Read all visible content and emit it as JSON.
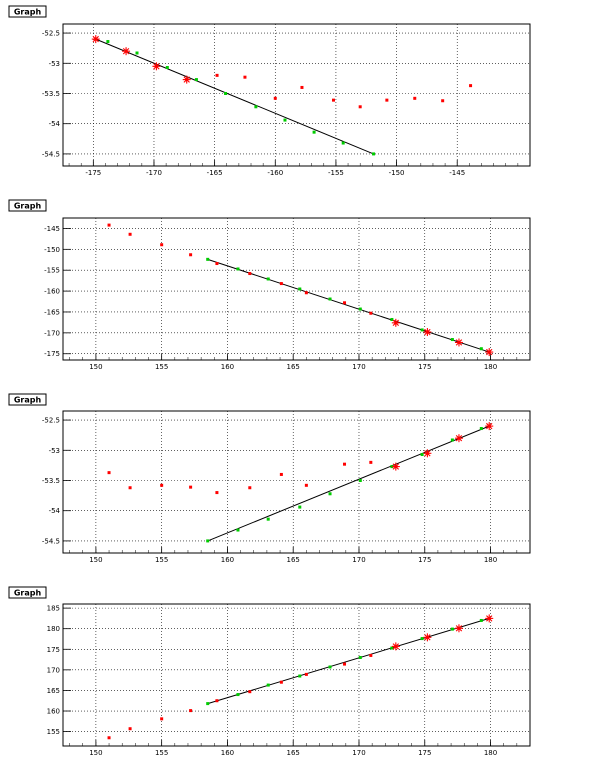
{
  "colors": {
    "red": "#ff0000",
    "green": "#00cc00",
    "black": "#000000"
  },
  "chart_data": [
    {
      "type": "scatter",
      "title": "Graph",
      "xlim": [
        -177.5,
        -139
      ],
      "ylim": [
        -54.7,
        -52.35
      ],
      "xticks": [
        -175,
        -170,
        -165,
        -160,
        -155,
        -150,
        -145
      ],
      "yticks": [
        -52.5,
        -53,
        -53.5,
        -54,
        -54.5
      ],
      "grid": true,
      "red_points": {
        "x": [
          -174.8,
          -172.3,
          -169.8,
          -167.3,
          -164.8,
          -162.5,
          -160,
          -157.8,
          -155.2,
          -153,
          -150.8,
          -148.5,
          -146.2,
          -143.9
        ],
        "y": [
          -52.6,
          -52.8,
          -53.05,
          -53.27,
          -53.2,
          -53.23,
          -53.58,
          -53.4,
          -53.61,
          -53.72,
          -53.61,
          -53.58,
          -53.62,
          -53.37
        ]
      },
      "star_points": {
        "x": [
          -174.8,
          -172.3,
          -169.8,
          -167.3
        ],
        "y": [
          -52.6,
          -52.8,
          -53.05,
          -53.27
        ]
      },
      "green_points": {
        "x": [
          -173.8,
          -171.4,
          -168.9,
          -166.5,
          -164.1,
          -161.6,
          -159.2,
          -156.8,
          -154.4,
          -151.9
        ],
        "y": [
          -52.64,
          -52.83,
          -53.07,
          -53.27,
          -53.5,
          -53.72,
          -53.94,
          -54.14,
          -54.32,
          -54.5
        ]
      },
      "fit_line": {
        "x": [
          -174.8,
          -151.9
        ],
        "y": [
          -52.6,
          -54.5
        ]
      }
    },
    {
      "type": "scatter",
      "title": "Graph",
      "xlim": [
        147.5,
        183
      ],
      "ylim": [
        -176.5,
        -142.5
      ],
      "xticks": [
        150,
        155,
        160,
        165,
        170,
        175,
        180
      ],
      "yticks": [
        -145,
        -150,
        -155,
        -160,
        -165,
        -170,
        -175
      ],
      "grid": true,
      "red_points": {
        "x": [
          151,
          152.6,
          155,
          157.2,
          159.2,
          161.7,
          164.1,
          166,
          168.9,
          170.9,
          172.8,
          175.2,
          177.6,
          179.9
        ],
        "y": [
          -144.2,
          -146.4,
          -148.9,
          -151.3,
          -153.4,
          -155.8,
          -158.2,
          -160.4,
          -162.8,
          -165.3,
          -167.6,
          -169.8,
          -172.3,
          -174.6
        ]
      },
      "star_points": {
        "x": [
          172.8,
          175.2,
          177.6,
          179.9
        ],
        "y": [
          -167.6,
          -169.8,
          -172.3,
          -174.6
        ]
      },
      "green_points": {
        "x": [
          158.5,
          160.8,
          163.1,
          165.5,
          167.8,
          170.1,
          172.5,
          174.8,
          177.1,
          179.3
        ],
        "y": [
          -152.4,
          -154.7,
          -157.1,
          -159.5,
          -161.9,
          -164.3,
          -166.8,
          -169.3,
          -171.6,
          -173.8
        ]
      },
      "fit_line": {
        "x": [
          158.5,
          179.9
        ],
        "y": [
          -152.4,
          -174.6
        ]
      }
    },
    {
      "type": "scatter",
      "title": "Graph",
      "xlim": [
        147.5,
        183
      ],
      "ylim": [
        -54.7,
        -52.35
      ],
      "xticks": [
        150,
        155,
        160,
        165,
        170,
        175,
        180
      ],
      "yticks": [
        -52.5,
        -53,
        -53.5,
        -54,
        -54.5
      ],
      "grid": true,
      "red_points": {
        "x": [
          151,
          152.6,
          155,
          157.2,
          159.2,
          161.7,
          164.1,
          166,
          168.9,
          170.9,
          172.8,
          175.2,
          177.6,
          179.9
        ],
        "y": [
          -53.37,
          -53.62,
          -53.58,
          -53.61,
          -53.7,
          -53.62,
          -53.4,
          -53.58,
          -53.23,
          -53.2,
          -53.27,
          -53.05,
          -52.8,
          -52.6
        ]
      },
      "star_points": {
        "x": [
          172.8,
          175.2,
          177.6,
          179.9
        ],
        "y": [
          -53.27,
          -53.05,
          -52.8,
          -52.6
        ]
      },
      "green_points": {
        "x": [
          158.5,
          160.8,
          163.1,
          165.5,
          167.8,
          170.1,
          172.5,
          174.8,
          177.1,
          179.3
        ],
        "y": [
          -54.5,
          -54.32,
          -54.14,
          -53.94,
          -53.72,
          -53.5,
          -53.27,
          -53.07,
          -52.83,
          -52.64
        ]
      },
      "fit_line": {
        "x": [
          158.5,
          179.9
        ],
        "y": [
          -54.5,
          -52.6
        ]
      }
    },
    {
      "type": "scatter",
      "title": "Graph",
      "xlim": [
        147.5,
        183
      ],
      "ylim": [
        151.5,
        186
      ],
      "xticks": [
        150,
        155,
        160,
        165,
        170,
        175,
        180
      ],
      "yticks": [
        155,
        160,
        165,
        170,
        175,
        180,
        185
      ],
      "grid": true,
      "red_points": {
        "x": [
          151,
          152.6,
          155,
          157.2,
          159.2,
          161.7,
          164.1,
          166,
          168.9,
          170.9,
          172.8,
          175.2,
          177.6,
          179.9
        ],
        "y": [
          153.5,
          155.7,
          158.1,
          160.1,
          162.5,
          164.7,
          167,
          168.9,
          171.4,
          173.5,
          175.7,
          177.9,
          180.1,
          182.5
        ]
      },
      "star_points": {
        "x": [
          172.8,
          175.2,
          177.6,
          179.9
        ],
        "y": [
          175.7,
          177.9,
          180.1,
          182.5
        ]
      },
      "green_points": {
        "x": [
          158.5,
          160.8,
          163.1,
          165.5,
          167.8,
          170.1,
          172.5,
          174.8,
          177.1,
          179.3
        ],
        "y": [
          161.8,
          164,
          166.3,
          168.5,
          170.7,
          173,
          175.3,
          177.6,
          179.9,
          182
        ]
      },
      "fit_line": {
        "x": [
          158.5,
          179.9
        ],
        "y": [
          161.8,
          182.5
        ]
      }
    }
  ]
}
